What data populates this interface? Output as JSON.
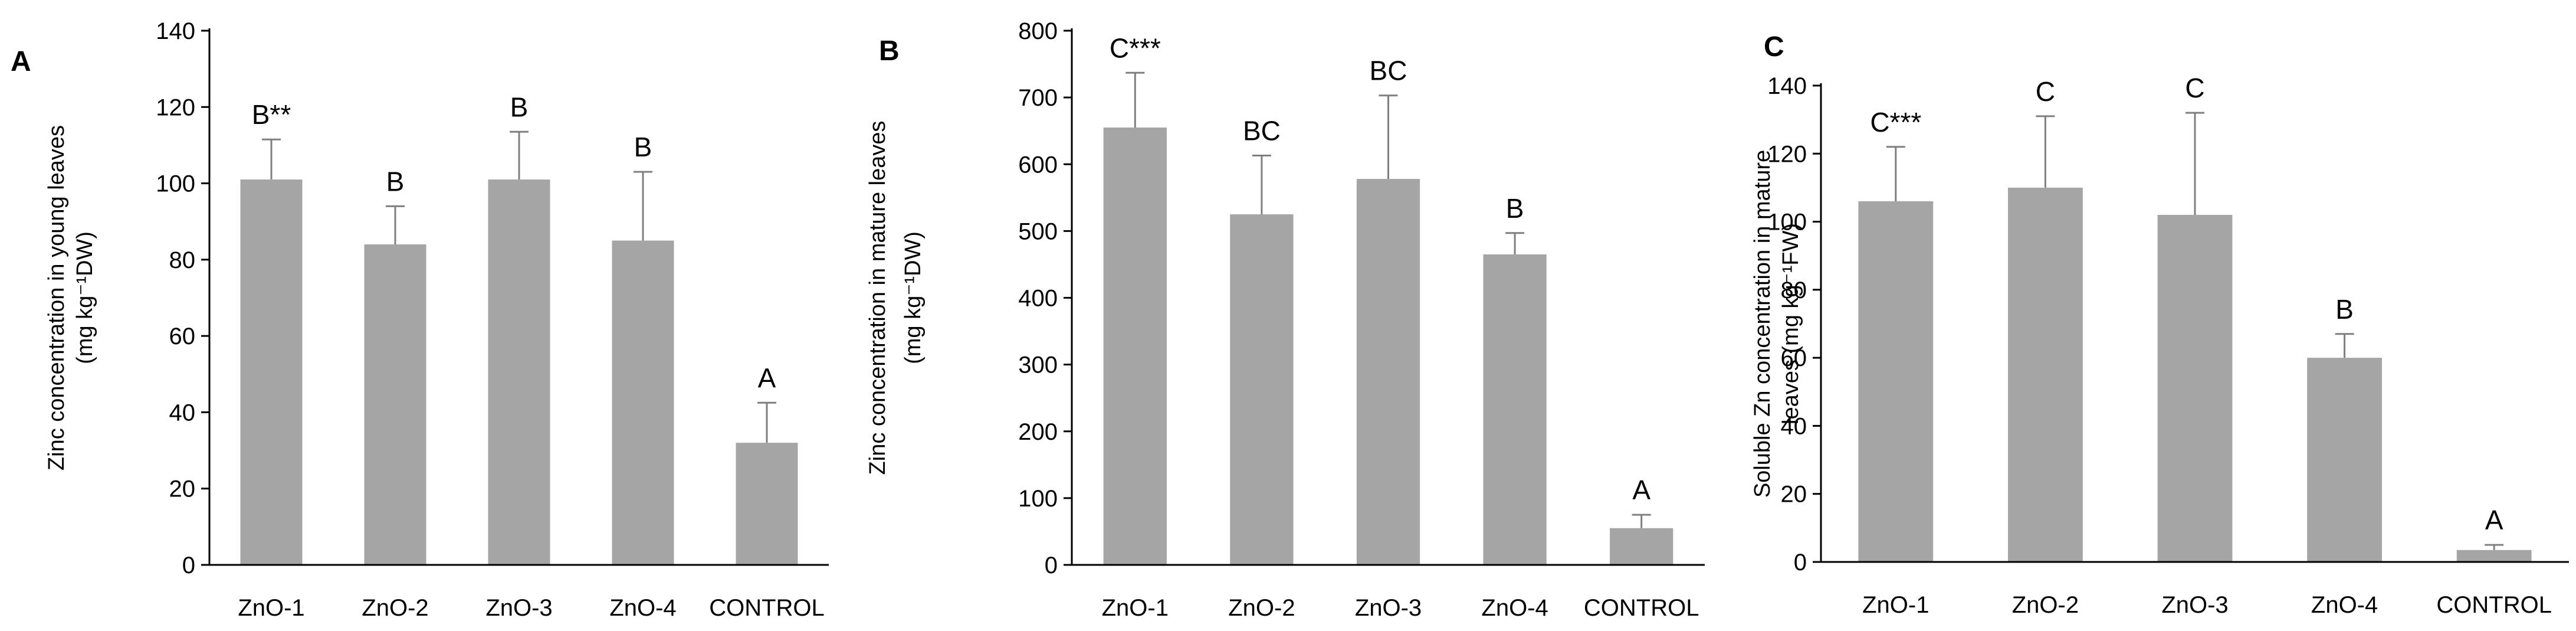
{
  "chart_data": [
    {
      "panel": "A",
      "type": "bar",
      "title": "",
      "xlabel": "",
      "ylabel_line1": "Zinc concentration in young leaves",
      "ylabel_line2": "(mg kg⁻¹DW)",
      "ylim": [
        0,
        140
      ],
      "yticks": [
        0,
        20,
        40,
        60,
        80,
        100,
        120,
        140
      ],
      "categories": [
        "ZnO-1",
        "ZnO-2",
        "ZnO-3",
        "ZnO-4",
        "CONTROL"
      ],
      "values": [
        101,
        84,
        101,
        85,
        32
      ],
      "errors": [
        10.5,
        10,
        12.5,
        18,
        10.5
      ],
      "labels": [
        "B**",
        "B",
        "B",
        "B",
        "A"
      ],
      "grid": false,
      "bar_color": "#a5a5a5"
    },
    {
      "panel": "B",
      "type": "bar",
      "title": "",
      "xlabel": "",
      "ylabel_line1": "Zinc concentration in mature leaves",
      "ylabel_line2": "(mg kg⁻¹DW)",
      "ylim": [
        0,
        800
      ],
      "yticks": [
        0,
        100,
        200,
        300,
        400,
        500,
        600,
        700,
        800
      ],
      "categories": [
        "ZnO-1",
        "ZnO-2",
        "ZnO-3",
        "ZnO-4",
        "CONTROL"
      ],
      "values": [
        655,
        525,
        578,
        465,
        55
      ],
      "errors": [
        82,
        88,
        125,
        32,
        20
      ],
      "labels": [
        "C***",
        "BC",
        "BC",
        "B",
        "A"
      ],
      "grid": false,
      "bar_color": "#a5a5a5"
    },
    {
      "panel": "C",
      "type": "bar",
      "title": "",
      "xlabel": "",
      "ylabel_line1": "Soluble Zn concentration in mature",
      "ylabel_line2": "leaves (mg kg⁻¹FW)",
      "ylim": [
        0,
        140
      ],
      "yticks": [
        0,
        20,
        40,
        60,
        80,
        100,
        120,
        140
      ],
      "categories": [
        "ZnO-1",
        "ZnO-2",
        "ZnO-3",
        "ZnO-4",
        "CONTROL"
      ],
      "values": [
        106,
        110,
        102,
        60,
        3.5
      ],
      "errors": [
        16,
        21,
        30,
        7,
        1.5
      ],
      "labels": [
        "C***",
        "C",
        "C",
        "B",
        "A"
      ],
      "grid": false,
      "bar_color": "#a5a5a5"
    }
  ]
}
